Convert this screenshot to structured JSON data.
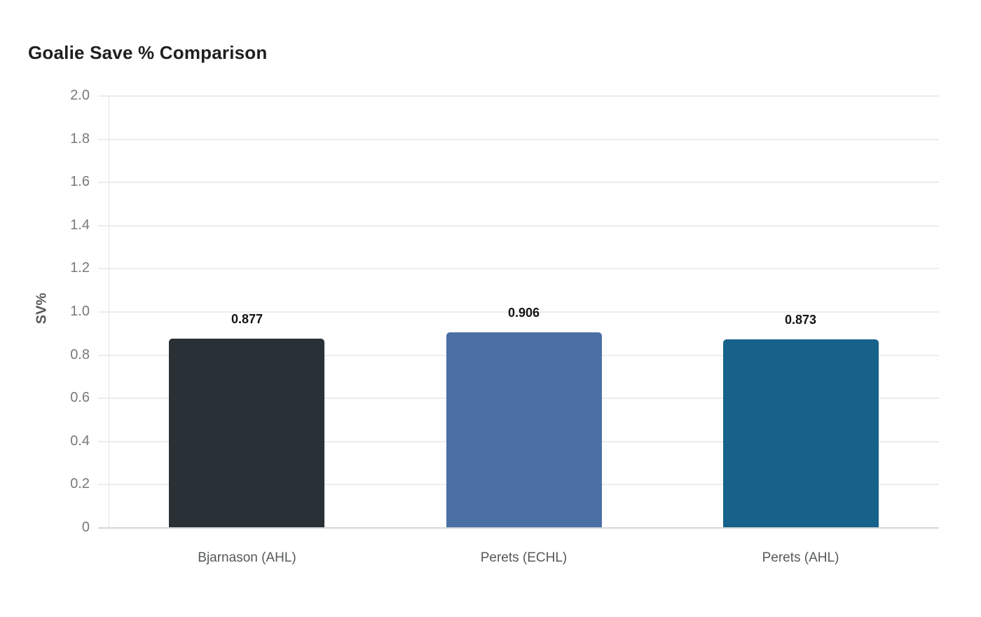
{
  "chart_data": {
    "type": "bar",
    "title": "Goalie Save % Comparison",
    "ylabel": "SV%",
    "xlabel": "",
    "categories": [
      "Bjarnason (AHL)",
      "Perets (ECHL)",
      "Perets (AHL)"
    ],
    "series": [
      {
        "name": "SV%",
        "values": [
          0.877,
          0.906,
          0.873
        ]
      }
    ],
    "values": [
      0.877,
      0.906,
      0.873
    ],
    "value_labels": [
      "0.877",
      "0.906",
      "0.873"
    ],
    "bar_colors": [
      "#2a3136",
      "#4a70a6",
      "#17628a"
    ],
    "ylim": [
      0,
      2.0
    ],
    "yticks": [
      0,
      0.2,
      0.4,
      0.6,
      0.8,
      1.0,
      1.2,
      1.4,
      1.6,
      1.8,
      2.0
    ],
    "ytick_labels": [
      "0",
      "0.2",
      "0.4",
      "0.6",
      "0.8",
      "1.0",
      "1.2",
      "1.4",
      "1.6",
      "1.8",
      "2.0"
    ],
    "grid": "horizontal",
    "legend": "none",
    "background": "#ffffff",
    "colors": {
      "title": "#1d1f21",
      "tick_label": "#77797c",
      "axis_label": "#55585a",
      "value_label": "#121417",
      "gridline": "#ececec",
      "baseline": "#d6d6d6",
      "axis_line": "#e4e4e4"
    }
  }
}
